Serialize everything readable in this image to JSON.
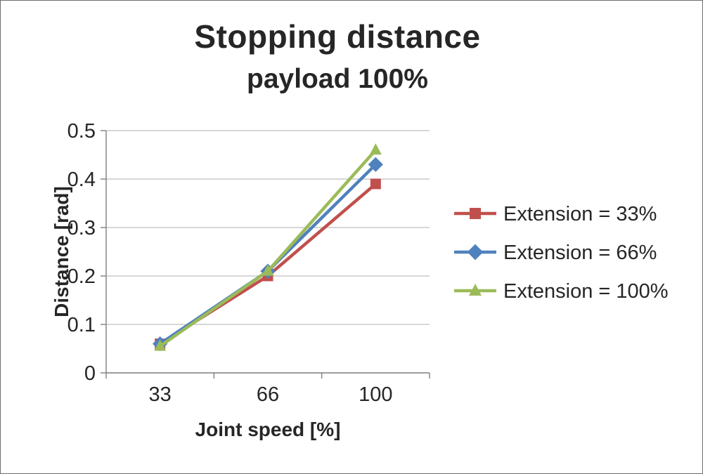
{
  "chart_data": {
    "type": "line",
    "title": "Stopping distance",
    "subtitle": "payload 100%",
    "xlabel": "Joint speed [%]",
    "ylabel": "Distance [rad]",
    "categories": [
      "33",
      "66",
      "100"
    ],
    "y_ticks": [
      0,
      0.1,
      0.2,
      0.3,
      0.4,
      0.5
    ],
    "y_tick_labels": [
      "0",
      "0.1",
      "0.2",
      "0.3",
      "0.4",
      "0.5"
    ],
    "ylim": [
      0,
      0.5
    ],
    "grid": true,
    "legend_position": "right",
    "colors": {
      "grid": "#bfbfbf",
      "axis": "#808080",
      "text": "#262626"
    },
    "series": [
      {
        "name": "Extension = 33%",
        "color": "#c0504d",
        "marker": "square",
        "values": [
          0.06,
          0.2,
          0.39
        ]
      },
      {
        "name": "Extension = 66%",
        "color": "#4f81bd",
        "marker": "diamond",
        "values": [
          0.06,
          0.21,
          0.43
        ]
      },
      {
        "name": "Extension = 100%",
        "color": "#9bbb59",
        "marker": "triangle",
        "values": [
          0.055,
          0.21,
          0.46
        ]
      }
    ]
  }
}
